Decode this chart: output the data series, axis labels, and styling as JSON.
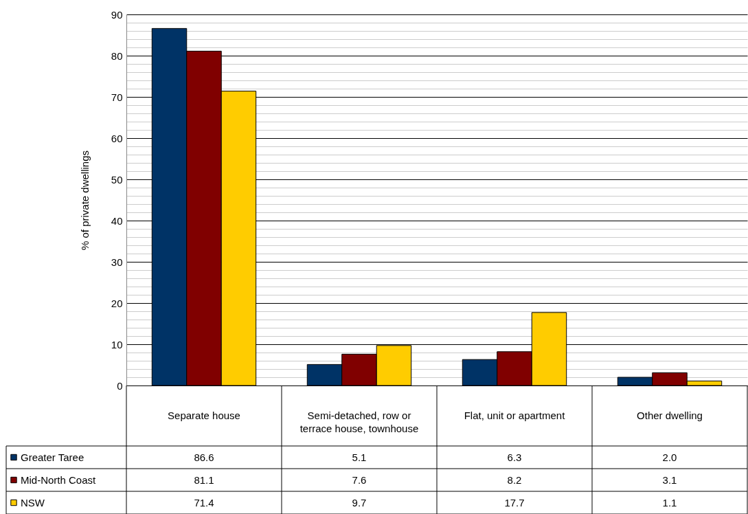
{
  "chart_data": {
    "type": "bar",
    "ylabel": "% of private dwellings",
    "categories": [
      "Separate house",
      "Semi-detached, row or terrace house, townhouse",
      "Flat, unit or apartment",
      "Other dwelling"
    ],
    "series": [
      {
        "name": "Greater Taree",
        "color": "#003366",
        "values": [
          86.6,
          5.1,
          6.3,
          2.0
        ],
        "value_labels": [
          "86.6",
          "5.1",
          "6.3",
          "2.0"
        ]
      },
      {
        "name": "Mid-North Coast",
        "color": "#800000",
        "values": [
          81.1,
          7.6,
          8.2,
          3.1
        ],
        "value_labels": [
          "81.1",
          "7.6",
          "8.2",
          "3.1"
        ]
      },
      {
        "name": "NSW",
        "color": "#ffcc00",
        "values": [
          71.4,
          9.7,
          17.7,
          1.1
        ],
        "value_labels": [
          "71.4",
          "9.7",
          "17.7",
          "1.1"
        ]
      }
    ],
    "ylim": [
      0,
      90
    ],
    "yticks": [
      0,
      {
        "value": 2,
        "label": null
      },
      {
        "value": 4,
        "label": null
      },
      {
        "value": 6,
        "label": null
      },
      {
        "value": 8,
        "label": null
      },
      10,
      {
        "value": 12,
        "label": null
      },
      {
        "value": 14,
        "label": null
      },
      {
        "value": 16,
        "label": null
      },
      {
        "value": 18,
        "label": null
      },
      20,
      {
        "value": 22,
        "label": null
      },
      {
        "value": 24,
        "label": null
      },
      {
        "value": 26,
        "label": null
      },
      {
        "value": 28,
        "label": null
      },
      30,
      {
        "value": 32,
        "label": null
      },
      {
        "value": 34,
        "label": null
      },
      {
        "value": 36,
        "label": null
      },
      {
        "value": 38,
        "label": null
      },
      40,
      {
        "value": 42,
        "label": null
      },
      {
        "value": 44,
        "label": null
      },
      {
        "value": 46,
        "label": null
      },
      {
        "value": 48,
        "label": null
      },
      50,
      {
        "value": 52,
        "label": null
      },
      {
        "value": 54,
        "label": null
      },
      {
        "value": 56,
        "label": null
      },
      {
        "value": 58,
        "label": null
      },
      60,
      {
        "value": 62,
        "label": null
      },
      {
        "value": 64,
        "label": null
      },
      {
        "value": 66,
        "label": null
      },
      {
        "value": 68,
        "label": null
      },
      70,
      {
        "value": 72,
        "label": null
      },
      {
        "value": 74,
        "label": null
      },
      {
        "value": 76,
        "label": null
      },
      {
        "value": 78,
        "label": null
      },
      80,
      {
        "value": 82,
        "label": null
      },
      {
        "value": 84,
        "label": null
      },
      {
        "value": 86,
        "label": null
      },
      {
        "value": 88,
        "label": null
      },
      90
    ],
    "grid": "y",
    "legend": "bottom left"
  }
}
